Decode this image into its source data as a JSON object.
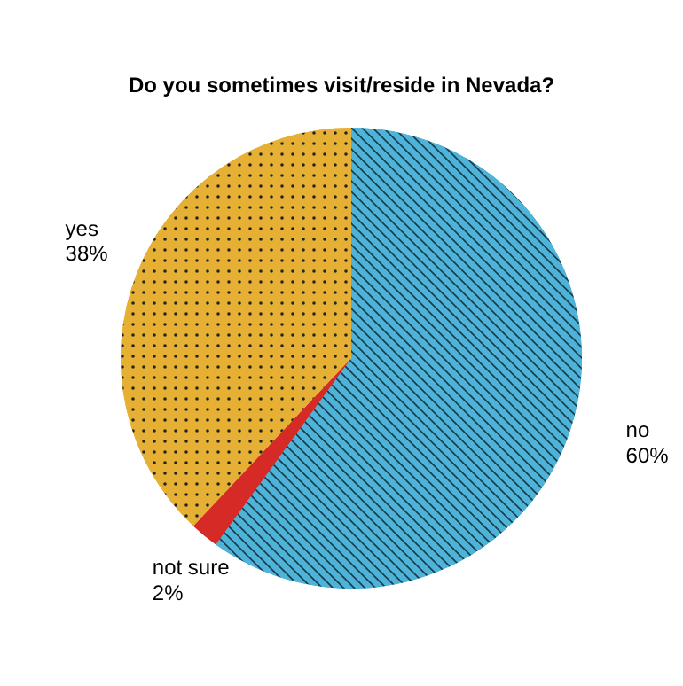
{
  "chart_data": {
    "type": "pie",
    "title": "Do you sometimes visit/reside in Nevada?",
    "categories": [
      "no",
      "not sure",
      "yes"
    ],
    "values": [
      60,
      2,
      38
    ],
    "value_labels": [
      "60%",
      "2%",
      "38%"
    ],
    "colors": [
      "#4db3d8",
      "#d62a27",
      "#e6b035"
    ]
  }
}
